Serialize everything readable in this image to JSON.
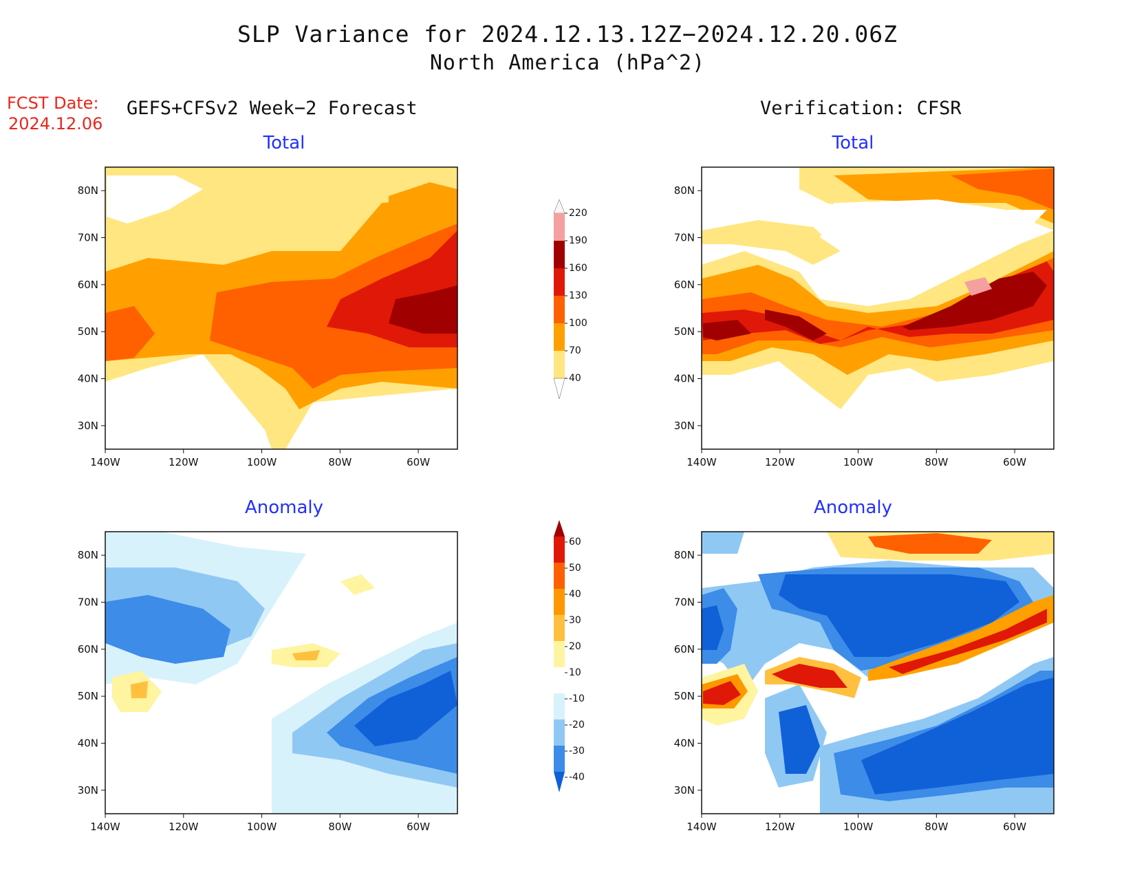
{
  "title": {
    "line1": "SLP Variance for 2024.12.13.12Z−2024.12.20.06Z",
    "line2": "North America (hPa^2)"
  },
  "fcst_date": {
    "label": "FCST Date:",
    "value": "2024.12.06"
  },
  "columns": {
    "forecast": "GEFS+CFSv2 Week−2 Forecast",
    "verification": "Verification: CFSR"
  },
  "panels": [
    {
      "id": "fcst-total",
      "title": "Total"
    },
    {
      "id": "ver-total",
      "title": "Total"
    },
    {
      "id": "fcst-anom",
      "title": "Anomaly"
    },
    {
      "id": "ver-anom",
      "title": "Anomaly"
    }
  ],
  "axes": {
    "lat_ticks": [
      "30N",
      "40N",
      "50N",
      "60N",
      "70N",
      "80N"
    ],
    "lon_ticks": [
      "140W",
      "120W",
      "100W",
      "80W",
      "60W"
    ]
  },
  "colorbars": {
    "total": {
      "levels": [
        "40",
        "70",
        "100",
        "130",
        "160",
        "190",
        "220"
      ],
      "colors": [
        "#ffe680",
        "#ffa000",
        "#ff6000",
        "#e01808",
        "#a00000",
        "#f4a0a0",
        "#ffe4e4"
      ]
    },
    "anomaly": {
      "levels": [
        "-40",
        "-30",
        "-20",
        "-10",
        "10",
        "20",
        "30",
        "40",
        "50",
        "60"
      ],
      "colors": [
        "#1060d8",
        "#3c8ce8",
        "#90c8f4",
        "#d8f2fc",
        "#ffffff",
        "#fff4a0",
        "#ffc040",
        "#ff9800",
        "#ff6000",
        "#e01808",
        "#a00000"
      ]
    }
  }
}
